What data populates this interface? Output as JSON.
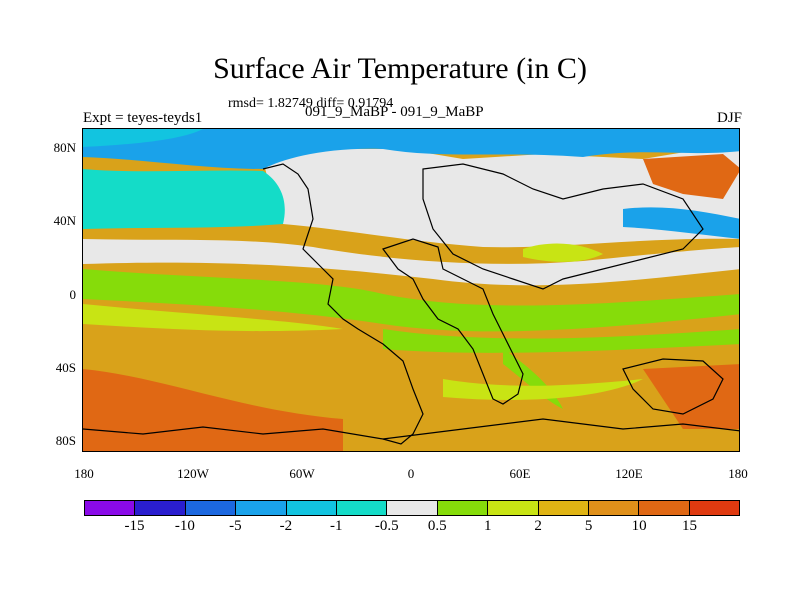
{
  "title": "Surface Air Temperature (in C)",
  "subtitle": "rmsd= 1.82749 diff= 0.91794",
  "experiment": "Expt = teyes-teyds1",
  "case": "091_9_MaBP - 091_9_MaBP",
  "season": "DJF",
  "y_ticks": [
    "80N",
    "40N",
    "0",
    "40S",
    "80S"
  ],
  "x_ticks": [
    "180",
    "120W",
    "60W",
    "0",
    "60E",
    "120E",
    "180"
  ],
  "colorbar": {
    "colors": [
      "#8a0ae8",
      "#2a1ecf",
      "#1c68e0",
      "#1aa2ea",
      "#12c4e0",
      "#14dcc8",
      "#e8e8e8",
      "#86dc0a",
      "#c8e414",
      "#e0b414",
      "#e0901a",
      "#e06814",
      "#e03a10"
    ],
    "labels": [
      "-15",
      "-10",
      "-5",
      "-2",
      "-1",
      "-0.5",
      "0.5",
      "1",
      "2",
      "5",
      "10",
      "15"
    ]
  },
  "colors": {
    "warm_ocean": "#d9a21a",
    "hot": "#e06814",
    "neutral": "#e8e8e8",
    "green": "#86dc0a",
    "yellow_green": "#c8e414",
    "cyan": "#14dcc8",
    "light_blue": "#1aa2ea"
  }
}
